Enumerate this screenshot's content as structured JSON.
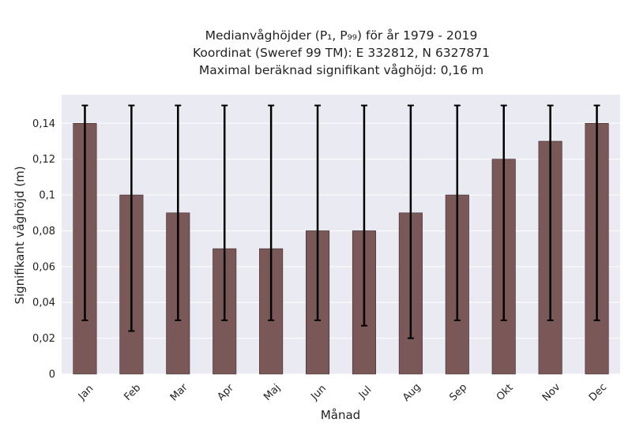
{
  "chart_data": {
    "type": "bar",
    "title": "Medianvåghöjder (P₁, P₉₉) för år 1979 - 2019",
    "subtitle_lines": [
      "Koordinat (Sweref 99 TM): E 332812, N 6327871",
      "Maximal beräknad signifikant våghöjd: 0,16 m"
    ],
    "xlabel": "Månad",
    "ylabel": "Signifikant våghöjd (m)",
    "categories": [
      "Jan",
      "Feb",
      "Mar",
      "Apr",
      "Maj",
      "Jun",
      "Jul",
      "Aug",
      "Sep",
      "Okt",
      "Nov",
      "Dec"
    ],
    "values": [
      0.14,
      0.1,
      0.09,
      0.07,
      0.07,
      0.08,
      0.08,
      0.09,
      0.1,
      0.12,
      0.13,
      0.14
    ],
    "error_low": [
      0.03,
      0.024,
      0.03,
      0.03,
      0.03,
      0.03,
      0.027,
      0.02,
      0.03,
      0.03,
      0.03,
      0.03
    ],
    "error_high": [
      0.15,
      0.15,
      0.15,
      0.15,
      0.15,
      0.15,
      0.15,
      0.15,
      0.15,
      0.15,
      0.15,
      0.15
    ],
    "ylim": [
      0,
      0.156
    ],
    "yticks": [
      0,
      0.02,
      0.04,
      0.06,
      0.08,
      0.1,
      0.12,
      0.14
    ],
    "ytick_labels": [
      "0",
      "0,02",
      "0,04",
      "0,06",
      "0,08",
      "0,1",
      "0,12",
      "0,14"
    ],
    "grid": true,
    "colors": {
      "bar": "#7b5858",
      "plot_bg": "#eaeaf2",
      "error": "#000000",
      "grid": "#ffffff"
    }
  }
}
